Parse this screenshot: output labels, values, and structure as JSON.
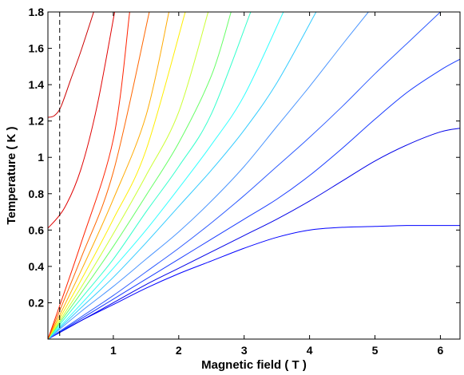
{
  "chart_data": {
    "type": "line",
    "xlabel": "Magnetic field ( T )",
    "ylabel": "Temperature ( K )",
    "xlim": [
      0,
      6.3
    ],
    "ylim": [
      0,
      1.8
    ],
    "xticks": [
      1,
      2,
      3,
      4,
      5,
      6
    ],
    "yticks": [
      0.2,
      0.4,
      0.6,
      0.8,
      1,
      1.2,
      1.4,
      1.6,
      1.8
    ],
    "grid": false,
    "legend": "none",
    "reference_line": {
      "x": 0.18,
      "style": "dashed",
      "color": "#000000"
    },
    "series": [
      {
        "color": "#0000ff",
        "x": [
          0,
          0.5,
          1,
          1.5,
          2,
          2.5,
          3,
          3.5,
          4,
          4.5,
          5,
          5.5,
          6,
          6.3
        ],
        "y": [
          0,
          0.1,
          0.19,
          0.28,
          0.36,
          0.43,
          0.5,
          0.56,
          0.6,
          0.615,
          0.62,
          0.625,
          0.625,
          0.625
        ]
      },
      {
        "color": "#0000e8",
        "x": [
          0,
          0.5,
          1,
          1.5,
          2,
          2.5,
          3,
          3.5,
          4,
          4.5,
          5,
          5.5,
          6,
          6.3
        ],
        "y": [
          0,
          0.1,
          0.2,
          0.3,
          0.39,
          0.48,
          0.57,
          0.66,
          0.76,
          0.87,
          0.98,
          1.07,
          1.14,
          1.16
        ]
      },
      {
        "color": "#1a3cff",
        "x": [
          0,
          0.5,
          1,
          1.5,
          2,
          2.5,
          3,
          3.5,
          4,
          4.5,
          5,
          5.5,
          6,
          6.3
        ],
        "y": [
          0,
          0.11,
          0.22,
          0.33,
          0.44,
          0.55,
          0.66,
          0.77,
          0.9,
          1.05,
          1.21,
          1.36,
          1.48,
          1.54
        ]
      },
      {
        "color": "#2f5cff",
        "x": [
          0,
          0.5,
          1,
          1.5,
          2,
          2.5,
          3,
          3.5,
          4,
          4.5,
          5,
          5.5,
          6
        ],
        "y": [
          0,
          0.12,
          0.24,
          0.37,
          0.5,
          0.64,
          0.79,
          0.95,
          1.11,
          1.28,
          1.46,
          1.63,
          1.8
        ]
      },
      {
        "color": "#4c96ff",
        "x": [
          0,
          0.5,
          1,
          1.5,
          2,
          2.5,
          3,
          3.5,
          4,
          4.5,
          4.9
        ],
        "y": [
          0,
          0.15,
          0.29,
          0.44,
          0.59,
          0.76,
          0.95,
          1.17,
          1.39,
          1.62,
          1.8
        ]
      },
      {
        "color": "#33ccff",
        "x": [
          0,
          0.5,
          1,
          1.5,
          2,
          2.5,
          3,
          3.5,
          4.1
        ],
        "y": [
          0,
          0.17,
          0.34,
          0.53,
          0.73,
          0.93,
          1.15,
          1.41,
          1.8
        ]
      },
      {
        "color": "#33ffff",
        "x": [
          0,
          0.5,
          1,
          1.5,
          2,
          2.5,
          3,
          3.6
        ],
        "y": [
          0,
          0.19,
          0.39,
          0.6,
          0.83,
          1.07,
          1.34,
          1.8
        ]
      },
      {
        "color": "#33ffcc",
        "x": [
          0,
          0.5,
          1,
          1.5,
          2,
          2.5,
          3.1
        ],
        "y": [
          0,
          0.22,
          0.44,
          0.7,
          0.95,
          1.24,
          1.8
        ]
      },
      {
        "color": "#66ff66",
        "x": [
          0,
          0.5,
          1,
          1.5,
          2,
          2.5,
          2.8
        ],
        "y": [
          0,
          0.25,
          0.51,
          0.79,
          1.08,
          1.45,
          1.8
        ]
      },
      {
        "color": "#ccff33",
        "x": [
          0,
          0.5,
          1,
          1.5,
          2,
          2.45
        ],
        "y": [
          0,
          0.28,
          0.58,
          0.9,
          1.25,
          1.8
        ]
      },
      {
        "color": "#ffee00",
        "x": [
          0,
          0.5,
          1,
          1.5,
          2.1
        ],
        "y": [
          0,
          0.32,
          0.66,
          1.04,
          1.8
        ]
      },
      {
        "color": "#ffaa00",
        "x": [
          0,
          0.5,
          1,
          1.5,
          1.85
        ],
        "y": [
          0,
          0.37,
          0.77,
          1.23,
          1.8
        ]
      },
      {
        "color": "#ff6600",
        "x": [
          0,
          0.5,
          1,
          1.55
        ],
        "y": [
          0,
          0.44,
          0.92,
          1.8
        ]
      },
      {
        "color": "#ff2200",
        "x": [
          0,
          0.5,
          1,
          1.25
        ],
        "y": [
          0,
          0.52,
          1.1,
          1.8
        ]
      },
      {
        "color": "#e00000",
        "x": [
          0,
          0.25,
          0.5,
          0.75,
          1.02
        ],
        "y": [
          0.61,
          0.72,
          0.93,
          1.28,
          1.8
        ]
      },
      {
        "color": "#cc0000",
        "x": [
          0,
          0.1,
          0.2,
          0.35,
          0.5,
          0.7
        ],
        "y": [
          1.22,
          1.23,
          1.28,
          1.43,
          1.58,
          1.8
        ]
      }
    ]
  }
}
